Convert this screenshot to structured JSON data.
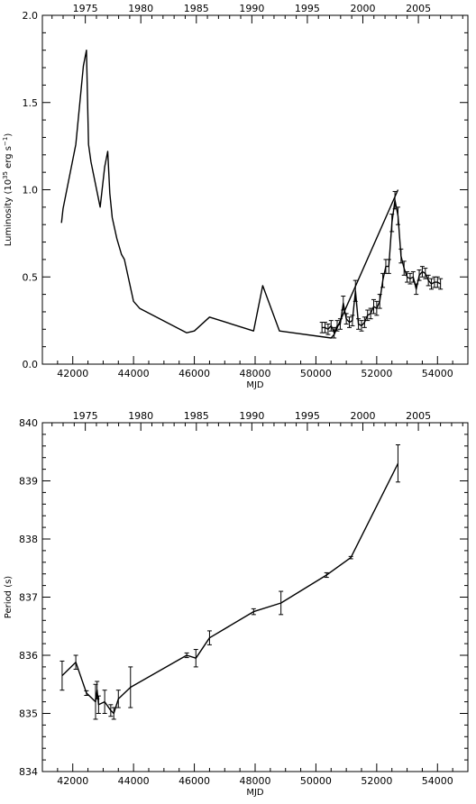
{
  "chart_data": [
    {
      "type": "line",
      "xlabel": "MJD",
      "ylabel": "Luminosity (10",
      "ylabel_sup": "35",
      "ylabel_unit": " erg s",
      "ylabel_unit_sup": "−1",
      "ylabel_close": ")",
      "xlim": [
        41000,
        55000
      ],
      "ylim": [
        0.0,
        2.0
      ],
      "x_ticks": [
        42000,
        44000,
        46000,
        48000,
        50000,
        52000,
        54000
      ],
      "x_tick_labels": [
        "42000",
        "44000",
        "46000",
        "48000",
        "50000",
        "52000",
        "54000"
      ],
      "y_ticks": [
        0.0,
        0.5,
        1.0,
        1.5,
        2.0
      ],
      "y_tick_labels": [
        "0.0",
        "0.5",
        "1.0",
        "1.5",
        "2.0"
      ],
      "top_ticks_mjd": [
        42413,
        44239,
        46066,
        47892,
        49718,
        51544,
        53371
      ],
      "top_tick_labels": [
        "1975",
        "1980",
        "1985",
        "1990",
        "1995",
        "2000",
        "2005"
      ],
      "grid": false,
      "series": [
        {
          "x": [
            41630,
            41680,
            42100,
            42350,
            42450,
            42520,
            42600,
            42900,
            43050,
            43150,
            43220,
            43300,
            43450,
            43600,
            43700,
            44000,
            44200,
            45750,
            46000,
            46500,
            47950,
            48250,
            48800,
            50500,
            50600,
            52700
          ],
          "y": [
            0.81,
            0.89,
            1.26,
            1.71,
            1.8,
            1.26,
            1.16,
            0.9,
            1.13,
            1.22,
            0.98,
            0.84,
            0.72,
            0.63,
            0.6,
            0.36,
            0.32,
            0.18,
            0.19,
            0.27,
            0.19,
            0.45,
            0.19,
            0.15,
            0.17,
            1.0
          ]
        },
        {
          "x": [
            50200,
            50300,
            50400,
            50500,
            50600,
            50700,
            50800,
            50900,
            51000,
            51100,
            51200,
            51300,
            51400,
            51500,
            51600,
            51700,
            51800,
            51900,
            52000,
            52100,
            52200,
            52300,
            52400,
            52500,
            52600,
            52700,
            52800,
            52900,
            53000,
            53100,
            53200,
            53300,
            53400,
            53500,
            53600,
            53700,
            53800,
            53900,
            54000,
            54100
          ],
          "y": [
            0.21,
            0.21,
            0.2,
            0.22,
            0.18,
            0.22,
            0.23,
            0.35,
            0.26,
            0.24,
            0.25,
            0.42,
            0.23,
            0.22,
            0.24,
            0.28,
            0.29,
            0.33,
            0.32,
            0.36,
            0.48,
            0.56,
            0.56,
            0.81,
            0.94,
            0.85,
            0.62,
            0.55,
            0.5,
            0.49,
            0.5,
            0.43,
            0.51,
            0.53,
            0.52,
            0.48,
            0.46,
            0.47,
            0.47,
            0.46
          ],
          "err": [
            0.03,
            0.03,
            0.03,
            0.03,
            0.03,
            0.03,
            0.03,
            0.04,
            0.03,
            0.03,
            0.03,
            0.06,
            0.03,
            0.03,
            0.03,
            0.03,
            0.03,
            0.04,
            0.04,
            0.04,
            0.04,
            0.04,
            0.04,
            0.05,
            0.05,
            0.05,
            0.04,
            0.04,
            0.03,
            0.03,
            0.03,
            0.03,
            0.03,
            0.03,
            0.03,
            0.03,
            0.03,
            0.03,
            0.03,
            0.03
          ]
        }
      ]
    },
    {
      "type": "line",
      "xlabel": "MJD",
      "ylabel": "Period (s)",
      "xlim": [
        41000,
        55000
      ],
      "ylim": [
        834,
        840
      ],
      "x_ticks": [
        42000,
        44000,
        46000,
        48000,
        50000,
        52000,
        54000
      ],
      "x_tick_labels": [
        "42000",
        "44000",
        "46000",
        "48000",
        "50000",
        "52000",
        "54000"
      ],
      "y_ticks": [
        834,
        835,
        836,
        837,
        838,
        839,
        840
      ],
      "y_tick_labels": [
        "834",
        "835",
        "836",
        "837",
        "838",
        "839",
        "840"
      ],
      "top_ticks_mjd": [
        42413,
        44239,
        46066,
        47892,
        49718,
        51544,
        53371
      ],
      "top_tick_labels": [
        "1975",
        "1980",
        "1985",
        "1990",
        "1995",
        "2000",
        "2005"
      ],
      "grid": false,
      "series": [
        {
          "x": [
            41650,
            42100,
            42450,
            42750,
            42800,
            42850,
            43050,
            43250,
            43350,
            43500,
            43900,
            45750,
            46050,
            46500,
            47950,
            48850,
            50350,
            51150,
            52700
          ],
          "y": [
            835.65,
            835.88,
            835.35,
            835.2,
            835.4,
            835.15,
            835.2,
            835.05,
            835.0,
            835.25,
            835.45,
            836.0,
            835.95,
            836.3,
            836.75,
            836.9,
            837.38,
            837.68,
            839.3
          ],
          "err": [
            0.25,
            0.12,
            0.04,
            0.3,
            0.15,
            0.15,
            0.2,
            0.1,
            0.1,
            0.15,
            0.35,
            0.04,
            0.15,
            0.12,
            0.05,
            0.2,
            0.04,
            0.02,
            0.32
          ]
        }
      ]
    }
  ]
}
